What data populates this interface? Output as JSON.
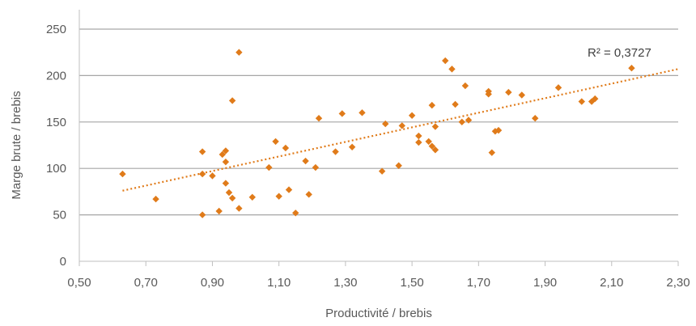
{
  "chart_data": {
    "type": "scatter",
    "xlabel": "Productivité / brebis",
    "ylabel": "Marge brute / brebis",
    "xlim": [
      0.5,
      2.3
    ],
    "ylim": [
      0,
      250
    ],
    "x_ticks": [
      "0,50",
      "0,70",
      "0,90",
      "1,10",
      "1,30",
      "1,50",
      "1,70",
      "1,90",
      "2,10",
      "2,30"
    ],
    "y_ticks": [
      "0",
      "50",
      "100",
      "150",
      "200",
      "250"
    ],
    "grid": "horizontal",
    "marker_color": "#E07B1A",
    "trendline": {
      "label": "R² = 0,3727",
      "x": [
        0.63,
        2.3
      ],
      "y": [
        76,
        207
      ],
      "color": "#E07B1A",
      "style": "dotted"
    },
    "series": [
      {
        "points": [
          [
            0.63,
            94
          ],
          [
            0.73,
            67
          ],
          [
            0.87,
            118
          ],
          [
            0.87,
            94
          ],
          [
            0.87,
            50
          ],
          [
            0.9,
            92
          ],
          [
            0.92,
            54
          ],
          [
            0.93,
            115
          ],
          [
            0.94,
            119
          ],
          [
            0.94,
            107
          ],
          [
            0.94,
            84
          ],
          [
            0.95,
            74
          ],
          [
            0.96,
            68
          ],
          [
            0.96,
            173
          ],
          [
            0.98,
            225
          ],
          [
            0.98,
            57
          ],
          [
            1.02,
            69
          ],
          [
            1.07,
            101
          ],
          [
            1.09,
            129
          ],
          [
            1.1,
            70
          ],
          [
            1.12,
            122
          ],
          [
            1.13,
            77
          ],
          [
            1.15,
            52
          ],
          [
            1.18,
            108
          ],
          [
            1.19,
            72
          ],
          [
            1.21,
            101
          ],
          [
            1.22,
            154
          ],
          [
            1.27,
            118
          ],
          [
            1.29,
            159
          ],
          [
            1.32,
            123
          ],
          [
            1.35,
            160
          ],
          [
            1.41,
            97
          ],
          [
            1.42,
            148
          ],
          [
            1.46,
            103
          ],
          [
            1.47,
            146
          ],
          [
            1.5,
            157
          ],
          [
            1.52,
            135
          ],
          [
            1.52,
            128
          ],
          [
            1.55,
            129
          ],
          [
            1.56,
            168
          ],
          [
            1.56,
            124
          ],
          [
            1.57,
            145
          ],
          [
            1.57,
            120
          ],
          [
            1.6,
            216
          ],
          [
            1.62,
            207
          ],
          [
            1.63,
            169
          ],
          [
            1.65,
            150
          ],
          [
            1.66,
            189
          ],
          [
            1.67,
            152
          ],
          [
            1.73,
            183
          ],
          [
            1.73,
            180
          ],
          [
            1.74,
            117
          ],
          [
            1.75,
            140
          ],
          [
            1.76,
            141
          ],
          [
            1.79,
            182
          ],
          [
            1.83,
            179
          ],
          [
            1.87,
            154
          ],
          [
            1.94,
            187
          ],
          [
            2.01,
            172
          ],
          [
            2.04,
            172
          ],
          [
            2.05,
            175
          ],
          [
            2.16,
            208
          ]
        ]
      }
    ]
  }
}
